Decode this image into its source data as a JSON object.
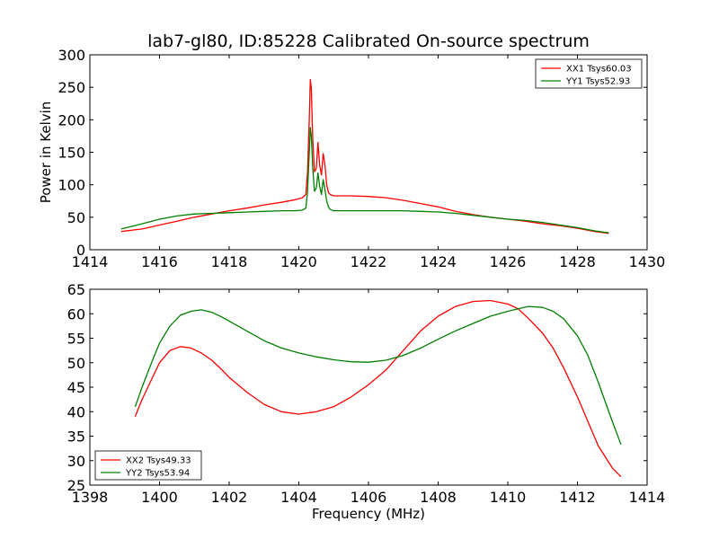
{
  "title": "lab7-gl80, ID:85228 Calibrated On-source spectrum",
  "chart_data": [
    {
      "type": "line",
      "title": "lab7-gl80, ID:85228 Calibrated On-source spectrum",
      "xlabel": "",
      "ylabel": "Power in Kelvin",
      "xlim": [
        1414,
        1430
      ],
      "ylim": [
        0,
        300
      ],
      "xticks": [
        "1414",
        "1416",
        "1418",
        "1420",
        "1422",
        "1424",
        "1426",
        "1428",
        "1430"
      ],
      "yticks": [
        "0",
        "50",
        "100",
        "150",
        "200",
        "250",
        "300"
      ],
      "legend_position": "top-right",
      "series": [
        {
          "name": "XX1 Tsys60.03",
          "color": "#ff0000",
          "x": [
            1414.9,
            1415.5,
            1416.0,
            1416.5,
            1417.0,
            1417.5,
            1418.0,
            1418.5,
            1419.0,
            1419.5,
            1419.9,
            1420.1,
            1420.2,
            1420.25,
            1420.3,
            1420.33,
            1420.36,
            1420.4,
            1420.45,
            1420.5,
            1420.55,
            1420.6,
            1420.65,
            1420.7,
            1420.75,
            1420.8,
            1420.85,
            1420.9,
            1421.0,
            1421.2,
            1421.5,
            1422.0,
            1422.5,
            1423.0,
            1423.5,
            1424.0,
            1424.5,
            1425.0,
            1425.5,
            1426.0,
            1426.5,
            1427.0,
            1427.5,
            1428.0,
            1428.5,
            1428.9
          ],
          "y": [
            28,
            32,
            38,
            44,
            50,
            55,
            60,
            64,
            69,
            73,
            77,
            80,
            85,
            120,
            200,
            262,
            248,
            170,
            120,
            125,
            165,
            130,
            115,
            148,
            130,
            100,
            88,
            85,
            83,
            83,
            83,
            82,
            80,
            76,
            71,
            66,
            59,
            54,
            50,
            47,
            44,
            40,
            37,
            33,
            28,
            25
          ]
        },
        {
          "name": "YY1 Tsys52.93",
          "color": "#008000",
          "x": [
            1414.9,
            1415.5,
            1416.0,
            1416.5,
            1417.0,
            1417.5,
            1418.0,
            1418.5,
            1419.0,
            1419.5,
            1419.9,
            1420.1,
            1420.2,
            1420.25,
            1420.3,
            1420.33,
            1420.36,
            1420.4,
            1420.45,
            1420.5,
            1420.55,
            1420.6,
            1420.65,
            1420.7,
            1420.75,
            1420.8,
            1420.85,
            1420.9,
            1421.0,
            1421.2,
            1421.5,
            1422.0,
            1422.5,
            1423.0,
            1423.5,
            1424.0,
            1424.5,
            1425.0,
            1425.5,
            1426.0,
            1426.5,
            1427.0,
            1427.5,
            1428.0,
            1428.5,
            1428.9
          ],
          "y": [
            32,
            40,
            47,
            52,
            55,
            56,
            57,
            58,
            59,
            60,
            60,
            61,
            64,
            90,
            150,
            188,
            175,
            125,
            90,
            95,
            118,
            97,
            85,
            108,
            92,
            75,
            66,
            62,
            60,
            60,
            60,
            60,
            60,
            60,
            59,
            58,
            56,
            53,
            50,
            47,
            45,
            42,
            38,
            34,
            29,
            26
          ]
        }
      ]
    },
    {
      "type": "line",
      "title": "",
      "xlabel": "Frequency (MHz)",
      "ylabel": "",
      "xlim": [
        1398,
        1414
      ],
      "ylim": [
        25,
        65
      ],
      "xticks": [
        "1398",
        "1400",
        "1402",
        "1404",
        "1406",
        "1408",
        "1410",
        "1412",
        "1414"
      ],
      "yticks": [
        "25",
        "30",
        "35",
        "40",
        "45",
        "50",
        "55",
        "60",
        "65"
      ],
      "legend_position": "bottom-left",
      "series": [
        {
          "name": "XX2 Tsys49.33",
          "color": "#ff0000",
          "x": [
            1399.3,
            1399.5,
            1399.8,
            1400.0,
            1400.3,
            1400.6,
            1400.9,
            1401.2,
            1401.5,
            1401.8,
            1402.0,
            1402.5,
            1403.0,
            1403.5,
            1404.0,
            1404.5,
            1405.0,
            1405.5,
            1406.0,
            1406.5,
            1407.0,
            1407.5,
            1408.0,
            1408.5,
            1409.0,
            1409.5,
            1410.0,
            1410.3,
            1410.6,
            1411.0,
            1411.3,
            1411.6,
            1412.0,
            1412.3,
            1412.6,
            1413.0,
            1413.25
          ],
          "y": [
            39,
            42.5,
            47,
            50,
            52.5,
            53.3,
            53,
            52,
            50.5,
            48.5,
            47,
            44,
            41.5,
            40,
            39.5,
            40,
            41,
            43,
            45.5,
            48.5,
            52.5,
            56.5,
            59.5,
            61.5,
            62.5,
            62.7,
            62,
            61,
            59,
            56,
            53,
            49,
            43,
            38,
            33,
            28.5,
            26.7
          ]
        },
        {
          "name": "YY2 Tsys53.94",
          "color": "#008000",
          "x": [
            1399.3,
            1399.5,
            1399.8,
            1400.0,
            1400.3,
            1400.6,
            1400.9,
            1401.2,
            1401.5,
            1401.8,
            1402.0,
            1402.5,
            1403.0,
            1403.5,
            1404.0,
            1404.5,
            1405.0,
            1405.5,
            1406.0,
            1406.5,
            1407.0,
            1407.5,
            1408.0,
            1408.5,
            1409.0,
            1409.5,
            1410.0,
            1410.3,
            1410.6,
            1411.0,
            1411.3,
            1411.6,
            1412.0,
            1412.3,
            1412.6,
            1413.0,
            1413.25
          ],
          "y": [
            41,
            45,
            50.5,
            54,
            57.5,
            59.7,
            60.5,
            60.8,
            60.3,
            59.3,
            58.5,
            56.5,
            54.5,
            53,
            52,
            51.2,
            50.6,
            50.2,
            50.1,
            50.5,
            51.5,
            53,
            54.8,
            56.5,
            58,
            59.5,
            60.5,
            61,
            61.5,
            61.3,
            60.5,
            59,
            55.5,
            51.5,
            46,
            38,
            33.3
          ]
        }
      ]
    }
  ]
}
